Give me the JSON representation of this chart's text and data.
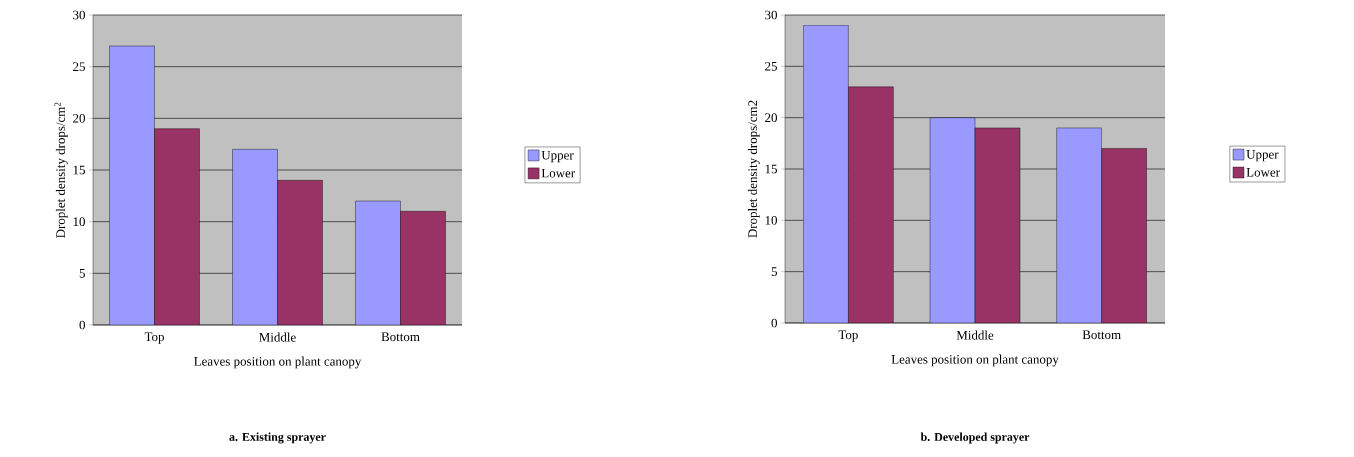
{
  "chart_data": [
    {
      "type": "bar",
      "title": "a. Existing sprayer",
      "xlabel": "Leaves position on plant canopy",
      "ylabel": "Droplet density drops/cm$^{2}$",
      "categories": [
        "Top",
        "Middle",
        "Bottom"
      ],
      "series": [
        {
          "name": "Upper",
          "color": "#9999ff",
          "values": [
            27,
            17,
            12
          ]
        },
        {
          "name": "Lower",
          "color": "#993366",
          "values": [
            19,
            14,
            11
          ]
        }
      ],
      "ylim": [
        0,
        30
      ],
      "yticks": [
        0,
        5,
        10,
        15,
        20,
        25,
        30
      ],
      "grid": "y",
      "legend": "right"
    },
    {
      "type": "bar",
      "title": "b. Developed sprayer",
      "xlabel": "Leaves position on plant canopy",
      "ylabel": "Droplet density drops/cm2",
      "categories": [
        "Top",
        "Middle",
        "Bottom"
      ],
      "series": [
        {
          "name": "Upper",
          "color": "#9999ff",
          "values": [
            29,
            20,
            19
          ]
        },
        {
          "name": "Lower",
          "color": "#993366",
          "values": [
            23,
            19,
            17
          ]
        }
      ],
      "ylim": [
        0,
        30
      ],
      "yticks": [
        0,
        5,
        10,
        15,
        20,
        25,
        30
      ],
      "grid": "y",
      "legend": "right"
    }
  ]
}
